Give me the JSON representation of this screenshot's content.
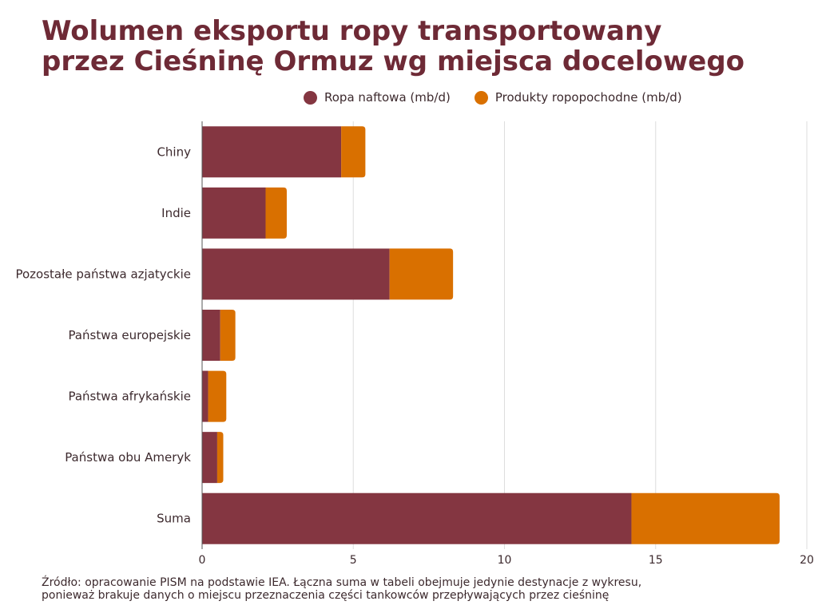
{
  "chart_data": {
    "type": "bar",
    "orientation": "horizontal",
    "stacked": true,
    "title_line1": "Wolumen eksportu ropy transportowany",
    "title_line2": "przez Cieśninę Ormuz wg miejsca docelowego",
    "categories": [
      "Chiny",
      "Indie",
      "Pozostałe państwa azjatyckie",
      "Państwa europejskie",
      "Państwa afrykańskie",
      "Państwa obu Ameryk",
      "Suma"
    ],
    "series": [
      {
        "name": "Ropa naftowa (mb/d)",
        "color": "#843641",
        "values": [
          4.6,
          2.1,
          6.2,
          0.6,
          0.2,
          0.5,
          14.2
        ]
      },
      {
        "name": "Produkty ropopochodne (mb/d)",
        "color": "#d97000",
        "values": [
          0.8,
          0.7,
          2.1,
          0.5,
          0.6,
          0.2,
          4.9
        ]
      }
    ],
    "xlim": [
      0,
      20
    ],
    "xticks": [
      "0",
      "5",
      "10",
      "15",
      "20"
    ],
    "xlabel": "",
    "ylabel": "",
    "grid": true,
    "legend_position": "top-right"
  },
  "footnote": {
    "line1": "Źródło: opracowanie PISM na podstawie IEA. Łączna suma w tabeli obejmuje jedynie destynacje z wykresu,",
    "line2": "ponieważ brakuje danych o miejscu przeznaczenia części tankowców przepływających przez cieśninę"
  }
}
